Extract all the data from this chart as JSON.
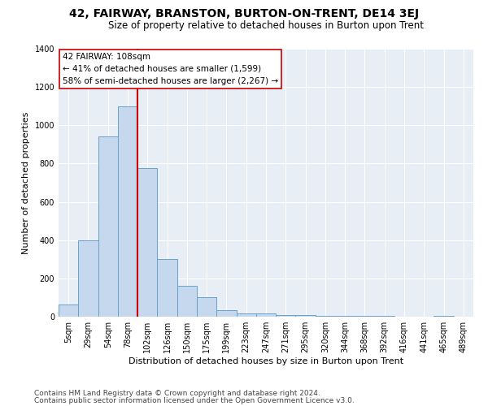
{
  "title": "42, FAIRWAY, BRANSTON, BURTON-ON-TRENT, DE14 3EJ",
  "subtitle": "Size of property relative to detached houses in Burton upon Trent",
  "xlabel": "Distribution of detached houses by size in Burton upon Trent",
  "ylabel": "Number of detached properties",
  "bin_labels": [
    "5sqm",
    "29sqm",
    "54sqm",
    "78sqm",
    "102sqm",
    "126sqm",
    "150sqm",
    "175sqm",
    "199sqm",
    "223sqm",
    "247sqm",
    "271sqm",
    "295sqm",
    "320sqm",
    "344sqm",
    "368sqm",
    "392sqm",
    "416sqm",
    "441sqm",
    "465sqm",
    "489sqm"
  ],
  "bar_values": [
    65,
    400,
    940,
    1100,
    775,
    300,
    160,
    100,
    35,
    15,
    15,
    10,
    10,
    5,
    5,
    5,
    5,
    0,
    0,
    5,
    0
  ],
  "bar_color": "#c5d8ee",
  "bar_edge_color": "#6aa0c8",
  "vline_x_index": 4,
  "vline_color": "#cc0000",
  "annotation_text": "42 FAIRWAY: 108sqm\n← 41% of detached houses are smaller (1,599)\n58% of semi-detached houses are larger (2,267) →",
  "annotation_box_color": "#ffffff",
  "annotation_box_edge": "#cc0000",
  "ylim": [
    0,
    1400
  ],
  "yticks": [
    0,
    200,
    400,
    600,
    800,
    1000,
    1200,
    1400
  ],
  "bg_color": "#e8eef5",
  "footer1": "Contains HM Land Registry data © Crown copyright and database right 2024.",
  "footer2": "Contains public sector information licensed under the Open Government Licence v3.0.",
  "title_fontsize": 10,
  "subtitle_fontsize": 8.5,
  "xlabel_fontsize": 8,
  "ylabel_fontsize": 8,
  "tick_fontsize": 7,
  "annot_fontsize": 7.5,
  "footer_fontsize": 6.5
}
